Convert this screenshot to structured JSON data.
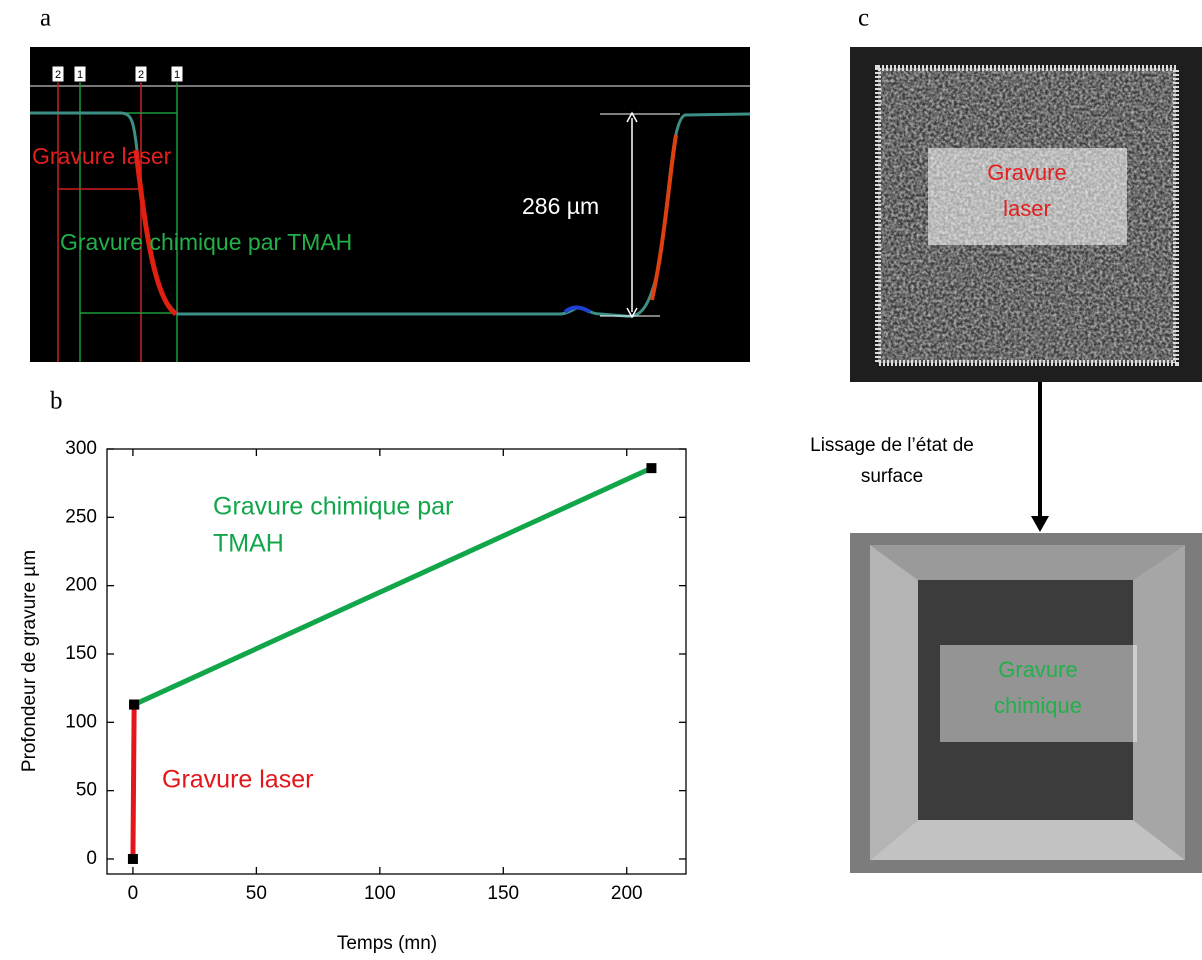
{
  "panel_labels": {
    "a": "a",
    "b": "b",
    "c": "c"
  },
  "profile": {
    "markers": [
      "2",
      "1",
      "2",
      "1"
    ],
    "laser_label": "Gravure laser",
    "chemical_label": "Gravure chimique par TMAH",
    "depth_label": "286 µm"
  },
  "chart_data": {
    "type": "line",
    "x_label": "Temps (mn)",
    "y_label": "Profondeur de gravure µm",
    "series": [
      {
        "name": "Gravure laser",
        "color": "#e3161b",
        "x": [
          0,
          0.5
        ],
        "values": [
          0,
          113
        ]
      },
      {
        "name": "Gravure chimique par TMAH",
        "color": "#12a64b",
        "x": [
          0.5,
          210
        ],
        "values": [
          113,
          286
        ]
      }
    ],
    "annotations": [
      [
        "Gravure chimique par",
        "TMAH"
      ],
      [
        "Gravure laser"
      ]
    ],
    "xlim": [
      -10.5,
      224
    ],
    "ylim": [
      -11,
      300
    ],
    "xticks": [
      0,
      50,
      100,
      150,
      200
    ],
    "yticks": [
      0,
      50,
      100,
      150,
      200,
      250,
      300
    ]
  },
  "micrographs": {
    "top_label": [
      "Gravure",
      "laser"
    ],
    "bottom_label": [
      "Gravure",
      "chimique"
    ],
    "arrow_label": [
      "Lissage de l’état de",
      "surface"
    ]
  }
}
